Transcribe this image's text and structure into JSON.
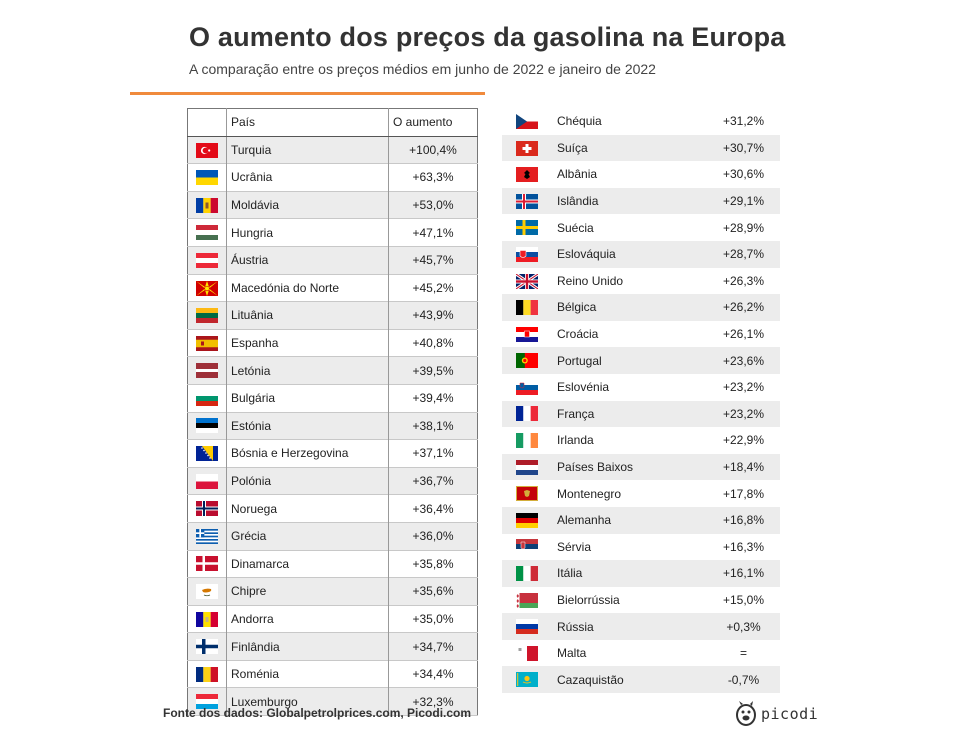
{
  "title": "O aumento dos preços da gasolina na Europa",
  "subtitle": "A comparação entre os preços médios em junho de 2022 e janeiro de 2022",
  "accent_color": "#f08a3c",
  "headers": {
    "country": "País",
    "increase": "O aumento"
  },
  "left_rows": [
    {
      "flag": "turkey-flag",
      "country": "Turquia",
      "increase": "+100,4%"
    },
    {
      "flag": "ukraine-flag",
      "country": "Ucrânia",
      "increase": "+63,3%"
    },
    {
      "flag": "moldova-flag",
      "country": "Moldávia",
      "increase": "+53,0%"
    },
    {
      "flag": "hungary-flag",
      "country": "Hungria",
      "increase": "+47,1%"
    },
    {
      "flag": "austria-flag",
      "country": "Áustria",
      "increase": "+45,7%"
    },
    {
      "flag": "north-macedonia-flag",
      "country": "Macedónia do Norte",
      "increase": "+45,2%"
    },
    {
      "flag": "lithuania-flag",
      "country": "Lituânia",
      "increase": "+43,9%"
    },
    {
      "flag": "spain-flag",
      "country": "Espanha",
      "increase": "+40,8%"
    },
    {
      "flag": "latvia-flag",
      "country": "Letónia",
      "increase": "+39,5%"
    },
    {
      "flag": "bulgaria-flag",
      "country": "Bulgária",
      "increase": "+39,4%"
    },
    {
      "flag": "estonia-flag",
      "country": "Estónia",
      "increase": "+38,1%"
    },
    {
      "flag": "bosnia-flag",
      "country": "Bósnia e Herzegovina",
      "increase": "+37,1%"
    },
    {
      "flag": "poland-flag",
      "country": "Polónia",
      "increase": "+36,7%"
    },
    {
      "flag": "norway-flag",
      "country": "Noruega",
      "increase": "+36,4%"
    },
    {
      "flag": "greece-flag",
      "country": "Grécia",
      "increase": "+36,0%"
    },
    {
      "flag": "denmark-flag",
      "country": "Dinamarca",
      "increase": "+35,8%"
    },
    {
      "flag": "cyprus-flag",
      "country": "Chipre",
      "increase": "+35,6%"
    },
    {
      "flag": "andorra-flag",
      "country": "Andorra",
      "increase": "+35,0%"
    },
    {
      "flag": "finland-flag",
      "country": "Finlândia",
      "increase": "+34,7%"
    },
    {
      "flag": "romania-flag",
      "country": "Roménia",
      "increase": "+34,4%"
    },
    {
      "flag": "luxembourg-flag",
      "country": "Luxemburgo",
      "increase": "+32,3%"
    }
  ],
  "right_rows": [
    {
      "flag": "czechia-flag",
      "country": "Chéquia",
      "increase": "+31,2%"
    },
    {
      "flag": "switzerland-flag",
      "country": "Suíça",
      "increase": "+30,7%"
    },
    {
      "flag": "albania-flag",
      "country": "Albânia",
      "increase": "+30,6%"
    },
    {
      "flag": "iceland-flag",
      "country": "Islândia",
      "increase": "+29,1%"
    },
    {
      "flag": "sweden-flag",
      "country": "Suécia",
      "increase": "+28,9%"
    },
    {
      "flag": "slovakia-flag",
      "country": "Eslováquia",
      "increase": "+28,7%"
    },
    {
      "flag": "uk-flag",
      "country": "Reino Unido",
      "increase": "+26,3%"
    },
    {
      "flag": "belgium-flag",
      "country": "Bélgica",
      "increase": "+26,2%"
    },
    {
      "flag": "croatia-flag",
      "country": "Croácia",
      "increase": "+26,1%"
    },
    {
      "flag": "portugal-flag",
      "country": "Portugal",
      "increase": "+23,6%"
    },
    {
      "flag": "slovenia-flag",
      "country": "Eslovénia",
      "increase": "+23,2%"
    },
    {
      "flag": "france-flag",
      "country": "França",
      "increase": "+23,2%"
    },
    {
      "flag": "ireland-flag",
      "country": "Irlanda",
      "increase": "+22,9%"
    },
    {
      "flag": "netherlands-flag",
      "country": "Países Baixos",
      "increase": "+18,4%"
    },
    {
      "flag": "montenegro-flag",
      "country": "Montenegro",
      "increase": "+17,8%"
    },
    {
      "flag": "germany-flag",
      "country": "Alemanha",
      "increase": "+16,8%"
    },
    {
      "flag": "serbia-flag",
      "country": "Sérvia",
      "increase": "+16,3%"
    },
    {
      "flag": "italy-flag",
      "country": "Itália",
      "increase": "+16,1%"
    },
    {
      "flag": "belarus-flag",
      "country": "Bielorrússia",
      "increase": "+15,0%"
    },
    {
      "flag": "russia-flag",
      "country": "Rússia",
      "increase": "+0,3%"
    },
    {
      "flag": "malta-flag",
      "country": "Malta",
      "increase": "="
    },
    {
      "flag": "kazakhstan-flag",
      "country": "Cazaquistão",
      "increase": "-0,7%"
    }
  ],
  "footer": "Fonte dos dados: Globalpetrolprices.com, Picodi.com",
  "logo_text": "picodi"
}
